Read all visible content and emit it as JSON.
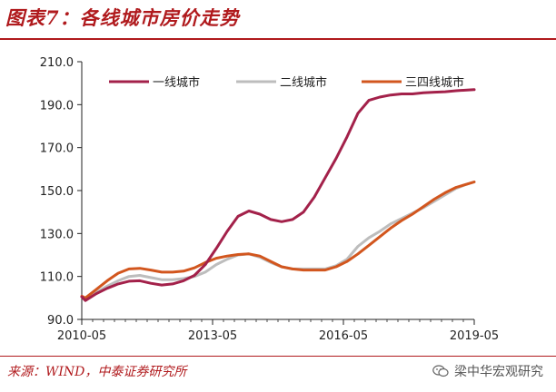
{
  "header": {
    "title": "图表7：各线城市房价走势"
  },
  "footer": {
    "source": "来源：WIND，中泰证券研究所",
    "watermark": "梁中华宏观研究",
    "watermark_icon": "wechat-icon"
  },
  "colors": {
    "accent": "#b01a1d",
    "tier1": "#a3214a",
    "tier2": "#bdbdbd",
    "tier34": "#d2561e"
  },
  "chart_data": {
    "type": "line",
    "title": "",
    "xlabel": "",
    "ylabel": "",
    "ylim": [
      90,
      210
    ],
    "yticks": [
      "90.0",
      "110.0",
      "130.0",
      "150.0",
      "170.0",
      "190.0",
      "210.0"
    ],
    "xticks": [
      "2010-05",
      "2013-05",
      "2016-05",
      "2019-05"
    ],
    "xrange": [
      "2010-05",
      "2019-05"
    ],
    "grid": false,
    "legend": "top",
    "series": [
      {
        "name": "一线城市",
        "color": "#a3214a",
        "points": [
          [
            "2010-05",
            100.5
          ],
          [
            "2010-06",
            98.8
          ],
          [
            "2010-09",
            102.0
          ],
          [
            "2010-12",
            104.5
          ],
          [
            "2011-03",
            106.5
          ],
          [
            "2011-06",
            107.8
          ],
          [
            "2011-09",
            108.0
          ],
          [
            "2011-12",
            106.8
          ],
          [
            "2012-03",
            106.0
          ],
          [
            "2012-06",
            106.5
          ],
          [
            "2012-09",
            108.0
          ],
          [
            "2012-12",
            110.5
          ],
          [
            "2013-03",
            115.5
          ],
          [
            "2013-06",
            123.0
          ],
          [
            "2013-09",
            131.0
          ],
          [
            "2013-12",
            138.0
          ],
          [
            "2014-03",
            140.5
          ],
          [
            "2014-06",
            139.0
          ],
          [
            "2014-09",
            136.5
          ],
          [
            "2014-12",
            135.5
          ],
          [
            "2015-03",
            136.5
          ],
          [
            "2015-06",
            140.0
          ],
          [
            "2015-09",
            147.0
          ],
          [
            "2015-12",
            156.0
          ],
          [
            "2016-03",
            165.0
          ],
          [
            "2016-06",
            175.0
          ],
          [
            "2016-09",
            186.0
          ],
          [
            "2016-12",
            192.0
          ],
          [
            "2017-03",
            193.5
          ],
          [
            "2017-06",
            194.5
          ],
          [
            "2017-09",
            195.0
          ],
          [
            "2017-12",
            195.0
          ],
          [
            "2018-03",
            195.5
          ],
          [
            "2018-06",
            195.8
          ],
          [
            "2018-09",
            196.0
          ],
          [
            "2018-12",
            196.5
          ],
          [
            "2019-03",
            196.8
          ],
          [
            "2019-05",
            197.0
          ]
        ]
      },
      {
        "name": "二线城市",
        "color": "#bdbdbd",
        "points": [
          [
            "2010-05",
            100.5
          ],
          [
            "2010-06",
            99.8
          ],
          [
            "2010-09",
            102.5
          ],
          [
            "2010-12",
            105.5
          ],
          [
            "2011-03",
            108.0
          ],
          [
            "2011-06",
            110.0
          ],
          [
            "2011-09",
            110.5
          ],
          [
            "2011-12",
            109.5
          ],
          [
            "2012-03",
            108.5
          ],
          [
            "2012-06",
            108.5
          ],
          [
            "2012-09",
            109.0
          ],
          [
            "2012-12",
            110.0
          ],
          [
            "2013-03",
            112.0
          ],
          [
            "2013-06",
            115.5
          ],
          [
            "2013-09",
            118.0
          ],
          [
            "2013-12",
            120.0
          ],
          [
            "2014-03",
            120.5
          ],
          [
            "2014-06",
            119.0
          ],
          [
            "2014-09",
            116.5
          ],
          [
            "2014-12",
            114.5
          ],
          [
            "2015-03",
            113.5
          ],
          [
            "2015-06",
            113.5
          ],
          [
            "2015-09",
            113.5
          ],
          [
            "2015-12",
            113.5
          ],
          [
            "2016-03",
            115.0
          ],
          [
            "2016-06",
            118.0
          ],
          [
            "2016-09",
            124.0
          ],
          [
            "2016-12",
            128.0
          ],
          [
            "2017-03",
            131.0
          ],
          [
            "2017-06",
            134.5
          ],
          [
            "2017-09",
            137.0
          ],
          [
            "2017-12",
            139.5
          ],
          [
            "2018-03",
            142.0
          ],
          [
            "2018-06",
            145.0
          ],
          [
            "2018-09",
            148.0
          ],
          [
            "2018-12",
            151.0
          ],
          [
            "2019-03",
            153.0
          ],
          [
            "2019-05",
            154.0
          ]
        ]
      },
      {
        "name": "三四线城市",
        "color": "#d2561e",
        "points": [
          [
            "2010-05",
            100.8
          ],
          [
            "2010-06",
            100.0
          ],
          [
            "2010-09",
            104.0
          ],
          [
            "2010-12",
            108.0
          ],
          [
            "2011-03",
            111.5
          ],
          [
            "2011-06",
            113.5
          ],
          [
            "2011-09",
            113.8
          ],
          [
            "2011-12",
            113.0
          ],
          [
            "2012-03",
            112.0
          ],
          [
            "2012-06",
            112.0
          ],
          [
            "2012-09",
            112.5
          ],
          [
            "2012-12",
            114.0
          ],
          [
            "2013-03",
            116.5
          ],
          [
            "2013-06",
            118.5
          ],
          [
            "2013-09",
            119.5
          ],
          [
            "2013-12",
            120.2
          ],
          [
            "2014-03",
            120.5
          ],
          [
            "2014-06",
            119.5
          ],
          [
            "2014-09",
            117.0
          ],
          [
            "2014-12",
            114.5
          ],
          [
            "2015-03",
            113.5
          ],
          [
            "2015-06",
            113.0
          ],
          [
            "2015-09",
            113.0
          ],
          [
            "2015-12",
            113.0
          ],
          [
            "2016-03",
            114.5
          ],
          [
            "2016-06",
            117.0
          ],
          [
            "2016-09",
            120.5
          ],
          [
            "2016-12",
            124.5
          ],
          [
            "2017-03",
            128.5
          ],
          [
            "2017-06",
            132.5
          ],
          [
            "2017-09",
            136.0
          ],
          [
            "2017-12",
            139.0
          ],
          [
            "2018-03",
            142.5
          ],
          [
            "2018-06",
            146.0
          ],
          [
            "2018-09",
            149.0
          ],
          [
            "2018-12",
            151.5
          ],
          [
            "2019-03",
            153.0
          ],
          [
            "2019-05",
            154.0
          ]
        ]
      }
    ]
  }
}
